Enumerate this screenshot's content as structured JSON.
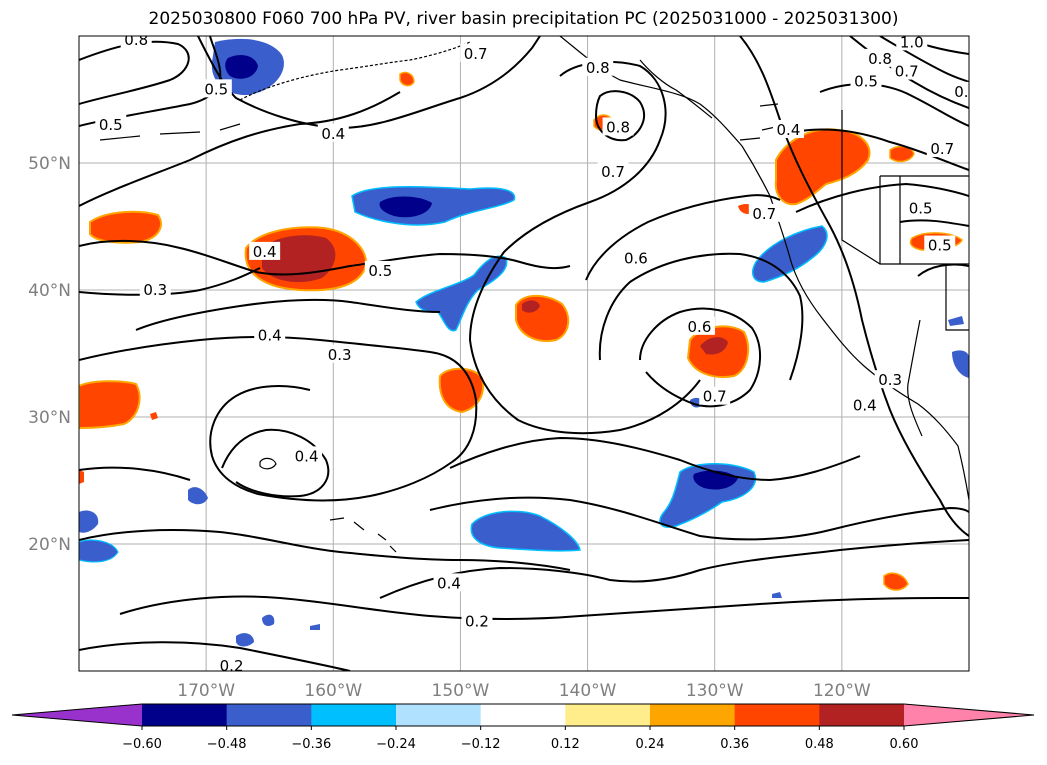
{
  "title": "2025030800 F060 700 hPa PV, river basin precipitation PC (2025031000 - 2025031300)",
  "map": {
    "lon_range": [
      -180,
      -110
    ],
    "lat_range": [
      10,
      60
    ],
    "lat_ticks": [
      {
        "value": 50,
        "label": "50°N"
      },
      {
        "value": 40,
        "label": "40°N"
      },
      {
        "value": 30,
        "label": "30°N"
      },
      {
        "value": 20,
        "label": "20°N"
      }
    ],
    "lon_ticks": [
      {
        "value": -170,
        "label": "170°W"
      },
      {
        "value": -160,
        "label": "160°W"
      },
      {
        "value": -150,
        "label": "150°W"
      },
      {
        "value": -140,
        "label": "140°W"
      },
      {
        "value": -130,
        "label": "130°W"
      },
      {
        "value": -120,
        "label": "120°W"
      }
    ],
    "gridlines": true,
    "contour_labels": [
      {
        "text": "0.8",
        "lon": -175.5,
        "lat": 59.7
      },
      {
        "text": "0.5",
        "lon": -177.5,
        "lat": 53.0
      },
      {
        "text": "0.5",
        "lon": -169.2,
        "lat": 55.8
      },
      {
        "text": "0.4",
        "lon": -160.0,
        "lat": 52.3
      },
      {
        "text": "0.7",
        "lon": -148.8,
        "lat": 58.6
      },
      {
        "text": "0.8",
        "lon": -139.2,
        "lat": 57.5
      },
      {
        "text": "0.8",
        "lon": -137.6,
        "lat": 52.8
      },
      {
        "text": "0.7",
        "lon": -138.0,
        "lat": 49.3
      },
      {
        "text": "0.4",
        "lon": -124.2,
        "lat": 52.6
      },
      {
        "text": "1.0",
        "lon": -114.5,
        "lat": 59.5
      },
      {
        "text": "0.8",
        "lon": -117.0,
        "lat": 58.2
      },
      {
        "text": "0.7",
        "lon": -114.9,
        "lat": 57.2
      },
      {
        "text": "0.5",
        "lon": -118.1,
        "lat": 56.4
      },
      {
        "text": "0.",
        "lon": -110.6,
        "lat": 55.6
      },
      {
        "text": "0.7",
        "lon": -112.1,
        "lat": 51.1
      },
      {
        "text": "0.5",
        "lon": -113.8,
        "lat": 46.4
      },
      {
        "text": "0.5",
        "lon": -112.3,
        "lat": 43.5
      },
      {
        "text": "0.7",
        "lon": -126.1,
        "lat": 46.0
      },
      {
        "text": "0.4",
        "lon": -165.4,
        "lat": 43.0
      },
      {
        "text": "0.5",
        "lon": -156.3,
        "lat": 41.5
      },
      {
        "text": "0.3",
        "lon": -174.0,
        "lat": 40.0
      },
      {
        "text": "0.6",
        "lon": -136.2,
        "lat": 42.5
      },
      {
        "text": "0.4",
        "lon": -165.0,
        "lat": 36.4
      },
      {
        "text": "0.3",
        "lon": -159.5,
        "lat": 34.9
      },
      {
        "text": "0.6",
        "lon": -131.2,
        "lat": 37.1
      },
      {
        "text": "0.7",
        "lon": -130.0,
        "lat": 31.6
      },
      {
        "text": "0.3",
        "lon": -116.2,
        "lat": 32.9
      },
      {
        "text": "0.4",
        "lon": -118.2,
        "lat": 30.9
      },
      {
        "text": "0.4",
        "lon": -162.1,
        "lat": 26.9
      },
      {
        "text": "0.4",
        "lon": -150.9,
        "lat": 16.9
      },
      {
        "text": "0.2",
        "lon": -148.7,
        "lat": 13.9
      },
      {
        "text": "0.2",
        "lon": -168.0,
        "lat": 10.4
      }
    ]
  },
  "colorbar": {
    "levels": [
      -0.6,
      -0.48,
      -0.36,
      -0.24,
      -0.12,
      0.12,
      0.24,
      0.36,
      0.48,
      0.6
    ],
    "tick_labels": [
      "−0.60",
      "−0.48",
      "−0.36",
      "−0.24",
      "−0.12",
      "0.12",
      "0.24",
      "0.36",
      "0.48",
      "0.60"
    ],
    "colors": [
      "#9932cc",
      "#00008b",
      "#3a5fcd",
      "#00bfff",
      "#b0e2ff",
      "#ffffff",
      "#ffec8b",
      "#ffa500",
      "#ff4500",
      "#b22222",
      "#ff82ab"
    ],
    "extend": "both"
  }
}
